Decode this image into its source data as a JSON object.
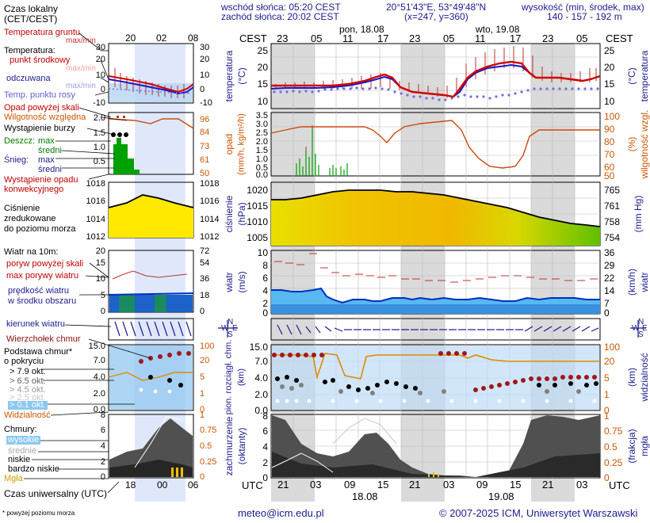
{
  "header": {
    "sunrise": "wschód słońca: 05:20 CEST",
    "sunset": "zachód słońca: 20:02 CEST",
    "coords": "20°51'43\"E, 53°49'48\"N",
    "grid": "(x=247, y=360)",
    "elev_label": "wysokość (min, środek, max)",
    "elev_values": "140 - 157 - 192 m"
  },
  "time": {
    "top_left_label": "CEST",
    "top_right_label": "CEST",
    "bottom_left_label": "UTC",
    "bottom_right_label": "UTC",
    "day1_top": "pon, 18.08",
    "day2_top": "wto, 19.08",
    "day1_bottom": "18.08",
    "day2_bottom": "19.08",
    "top_hours": [
      "23",
      "05",
      "11",
      "17",
      "23",
      "05",
      "11",
      "17",
      "23",
      "05"
    ],
    "bottom_hours": [
      "21",
      "03",
      "09",
      "15",
      "21",
      "03",
      "09",
      "15",
      "21",
      "03"
    ],
    "legend_top_hours": [
      "20",
      "02",
      "08"
    ],
    "legend_bottom_hours": [
      "18",
      "00",
      "06"
    ]
  },
  "legend": {
    "time_local": "Czas lokalny",
    "time_local2": "(CET/CEST)",
    "soil_temp": "Temperatura gruntu",
    "soil_maxmin": "max/min",
    "temperature": "Temperatura:",
    "mid_point": "punkt środkowy",
    "mid_maxmin": "max/min",
    "perceived": "odczuwana",
    "perceived_maxmin": "max/min",
    "dewpoint": "Temp. punktu rosy",
    "precip_above": "Opad powyżej skali",
    "humidity": "Wilgotność względna",
    "storm": "Wystąpienie burzy",
    "rain": "Deszcz:",
    "rain_max": "max",
    "rain_mid": "średni",
    "snow": "Śnieg:",
    "snow_max": "max",
    "snow_mid": "średni",
    "conv": "Wystąpienie opadu",
    "conv2": "konwekcyjnego",
    "pressure1": "Ciśnienie",
    "pressure2": "zredukowane",
    "pressure3": "do poziomu morza",
    "wind_title": "Wiatr na 10m:",
    "gust_above": "poryw powyżej skali",
    "gust_max": "max porywy wiatru",
    "wind_speed": "prędkość wiatru",
    "wind_speed2": "w środku obszaru",
    "wind_dir": "kierunek wiatru",
    "cb_top": "Wierzchołek chmur",
    "cloud_base1": "Podstawa chmur*",
    "cloud_base2": "o pokryciu",
    "okt79": "> 7.9 okt.",
    "okt65": "> 6.5 okt.",
    "okt45": "> 4.5 okt.",
    "okt25": "> 2.5 okt.",
    "okt01": "> 0.1 okt.",
    "visibility": "Widzialność",
    "clouds": "Chmury:",
    "high": "wysokie",
    "mid": "średnie",
    "low": "niskie",
    "vlow": "bardzo niskie",
    "fog": "Mgła",
    "utc_label": "Czas uniwersalny (UTC)",
    "footnote": "* powyżej poziomu morza"
  },
  "axes": {
    "temperature": "temperatura",
    "temp_unit": "(°C)",
    "precip": "opad",
    "precip_unit": "(mm/h, kg/m²/h)",
    "humidity": "wilgotność wzgl.",
    "humidity_unit": "(%)",
    "pressure": "ciśnienie",
    "pressure_unit": "(hPa)",
    "pressure_unit_r": "(mm Hg)",
    "wind": "wiatr",
    "wind_unit": "(m/s)",
    "wind_unit_r": "(km/h)",
    "cloud_base": "pion. rozciągł. chm.",
    "cloud_base_unit": "(km)",
    "visibility": "widzialność",
    "visibility_unit": "(km)",
    "cloud_cover": "zachmurzenie",
    "cloud_cover_unit": "(oktanty)",
    "fog": "mgła",
    "fog_unit": "(frakcja)",
    "compass_n": "N",
    "compass_w": "W",
    "compass_e": "E",
    "compass_s": "S"
  },
  "ticks": {
    "temp_left": [
      "25",
      "20",
      "15",
      "10"
    ],
    "temp_right": [
      "25",
      "20",
      "15",
      "10"
    ],
    "precip_left": [
      "3.5",
      "3.0",
      "2.5",
      "2.0",
      "1.5",
      "1.0",
      "0.5",
      "0.0"
    ],
    "humidity_right": [
      "100",
      "90",
      "80",
      "70",
      "60",
      "50"
    ],
    "pressure_left": [
      "1020",
      "1015",
      "1010",
      "1005"
    ],
    "pressure_right": [
      "765",
      "761",
      "758",
      "754"
    ],
    "wind_left": [
      "10",
      "8",
      "6",
      "4",
      "2",
      "0"
    ],
    "wind_right": [
      "36",
      "29",
      "22",
      "14",
      "7",
      "0"
    ],
    "cloud_left": [
      "15.0",
      "7.0",
      "4.0",
      "2.0",
      "0.0"
    ],
    "vis_right": [
      "100",
      "20",
      "5",
      "1",
      "0"
    ],
    "octa_left": [
      "8",
      "6",
      "4",
      "2",
      "0"
    ],
    "fog_right": [
      "1",
      "0.75",
      "0.5",
      "0.25",
      "0"
    ],
    "lg_temp_left": [
      "30",
      "20",
      "10",
      "0",
      "-10"
    ],
    "lg_temp_right": [
      "30",
      "20",
      "10",
      "0",
      "-10"
    ],
    "lg_precip_left": [
      "2.0",
      "1.5",
      "1.0",
      "0.5"
    ],
    "lg_hum_right": [
      "96",
      "84",
      "73",
      "61",
      "50"
    ],
    "lg_pres_left": [
      "1018",
      "1016",
      "1014",
      "1012"
    ],
    "lg_pres_right": [
      "1018",
      "1016",
      "1014",
      "1012"
    ],
    "lg_wind_left": [
      "20",
      "15",
      "10",
      "5",
      "0"
    ],
    "lg_wind_right": [
      "72",
      "54",
      "36",
      "18",
      "0"
    ],
    "lg_cloud_left": [
      "15.0",
      "7.0",
      "4.0",
      "2.0",
      "0.0"
    ],
    "lg_vis_right": [
      "100",
      "20",
      "5",
      "1",
      "0"
    ],
    "lg_oct_left": [
      "8",
      "6",
      "4",
      "2",
      "0"
    ],
    "lg_fog_right": [
      "1",
      "0.75",
      "0.5",
      "0.25",
      "0"
    ]
  },
  "footer": {
    "email": "meteo@icm.edu.pl",
    "copyright": "© 2007-2025 ICM, Uniwersytet Warszawski"
  },
  "colors": {
    "temp": "#d00000",
    "perceived": "#1010c0",
    "dewpoint": "#8080e0",
    "humidity": "#cc5500",
    "rain": "#00a000",
    "pressure_fill": "#f0d000",
    "wind": "#0030c0",
    "night": "#d8d8d8",
    "legend_band": "#dce8ff"
  }
}
